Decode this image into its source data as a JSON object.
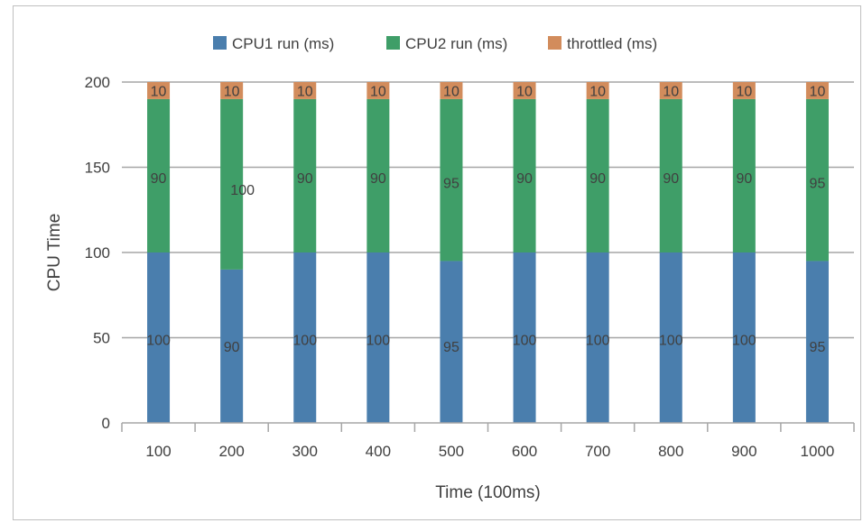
{
  "chart_data": {
    "type": "bar",
    "stacked": true,
    "title": "",
    "xlabel": "Time (100ms)",
    "ylabel": "CPU Time",
    "ylim": [
      0,
      200
    ],
    "yticks": [
      0,
      50,
      100,
      150,
      200
    ],
    "grid": true,
    "legend_position": "top",
    "categories": [
      "100",
      "200",
      "300",
      "400",
      "500",
      "600",
      "700",
      "800",
      "900",
      "1000"
    ],
    "series": [
      {
        "name": "CPU1 run (ms)",
        "color": "#4a7ead",
        "values": [
          100,
          90,
          100,
          100,
          95,
          100,
          100,
          100,
          100,
          95
        ]
      },
      {
        "name": "CPU2 run (ms)",
        "color": "#3f9e68",
        "values": [
          90,
          100,
          90,
          90,
          95,
          90,
          90,
          90,
          90,
          95
        ]
      },
      {
        "name": "throttled (ms)",
        "color": "#d28c5c",
        "values": [
          10,
          10,
          10,
          10,
          10,
          10,
          10,
          10,
          10,
          10
        ]
      }
    ]
  }
}
